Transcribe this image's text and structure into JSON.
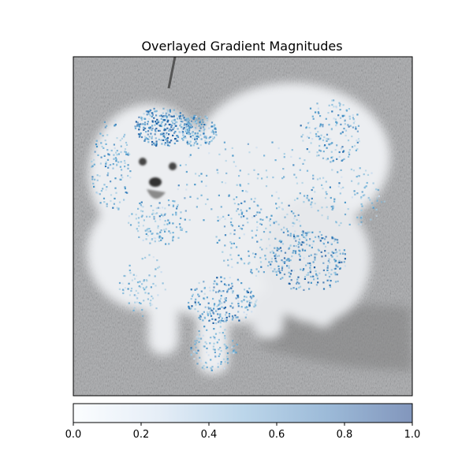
{
  "chart_data": {
    "type": "heatmap",
    "title": "Overlayed Gradient Magnitudes",
    "description_of_background": "grayscale photo of a fluffy white dog on grass, overlaid with a semi-transparent blue gradient-magnitude heatmap",
    "colorbar": {
      "orientation": "horizontal",
      "min": 0.0,
      "max": 1.0,
      "ticks": [
        0.0,
        0.2,
        0.4,
        0.6,
        0.8,
        1.0
      ],
      "tick_labels": [
        "0.0",
        "0.2",
        "0.4",
        "0.6",
        "0.8",
        "1.0"
      ],
      "colormap": "Blues",
      "alpha": 0.5
    },
    "axes": {
      "xticks": false,
      "yticks": false,
      "grid": false
    }
  },
  "colors": {
    "cmap_low": "#f7fbff",
    "cmap_mid": "#6baed6",
    "cmap_high": "#08306b",
    "photo_grass": "#9a9a9a",
    "photo_fur": "#e8eaed"
  }
}
